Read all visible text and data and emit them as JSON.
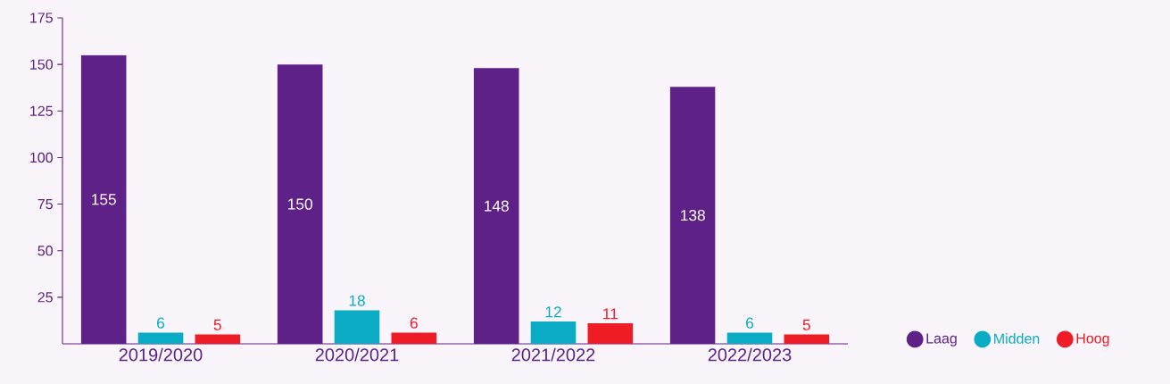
{
  "chart_data": {
    "type": "bar",
    "categories": [
      "2019/2020",
      "2020/2021",
      "2021/2022",
      "2022/2023"
    ],
    "series": [
      {
        "name": "Laag",
        "color": "#5e2188",
        "values": [
          155,
          150,
          148,
          138
        ]
      },
      {
        "name": "Midden",
        "color": "#0aacc5",
        "values": [
          6,
          18,
          12,
          6
        ]
      },
      {
        "name": "Hoog",
        "color": "#ee1c25",
        "values": [
          5,
          6,
          11,
          5
        ]
      }
    ],
    "ylim": [
      0,
      175
    ],
    "yticks": [
      25,
      50,
      75,
      100,
      125,
      150,
      175
    ],
    "data_labels": true,
    "legend": "bottom right",
    "grid": false
  }
}
